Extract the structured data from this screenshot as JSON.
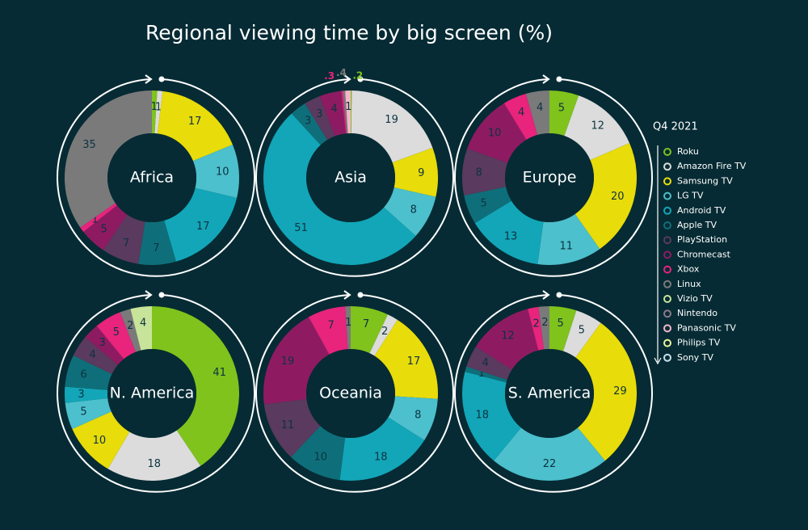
{
  "title": "Regional viewing time by big screen (%)",
  "legend": {
    "title": "Q4 2021",
    "items": [
      "Roku",
      "Amazon Fire TV",
      "Samsung TV",
      "LG TV",
      "Android TV",
      "Apple TV",
      "PlayStation",
      "Chromecast",
      "Xbox",
      "Linux",
      "Vizio TV",
      "Nintendo",
      "Panasonic TV",
      "Philips TV",
      "Sony TV"
    ],
    "colors": [
      "#7fc31c",
      "#dcdcdc",
      "#e8dc0a",
      "#4cc0cc",
      "#12a6b8",
      "#0e6f7a",
      "#5a3a5e",
      "#8e1b62",
      "#e8247c",
      "#7a7a7a",
      "#c8e49a",
      "#8c7a8c",
      "#f4b6c8",
      "#eef59a",
      "#c8e0ec"
    ]
  },
  "chart_data": [
    {
      "type": "donut",
      "title": "Africa",
      "values": [
        1,
        1,
        17,
        10,
        17,
        7,
        7,
        5,
        1,
        35,
        null,
        null,
        null,
        null,
        null
      ]
    },
    {
      "type": "donut",
      "title": "Asia",
      "values": [
        0.2,
        19,
        9,
        8,
        51,
        3,
        3,
        4,
        0.3,
        0.4,
        null,
        null,
        1,
        null,
        null
      ],
      "value_labels": [
        ".2",
        "19",
        "9",
        "8",
        "51",
        "3",
        "3",
        "4",
        ".3",
        ".4",
        null,
        null,
        "1",
        null,
        null
      ]
    },
    {
      "type": "donut",
      "title": "Europe",
      "values": [
        5,
        12,
        20,
        11,
        13,
        5,
        8,
        10,
        4,
        4,
        null,
        null,
        null,
        null,
        null
      ]
    },
    {
      "type": "donut",
      "title": "N. America",
      "values": [
        41,
        18,
        10,
        5,
        3,
        6,
        4,
        3,
        5,
        2,
        4,
        null,
        null,
        null,
        null
      ]
    },
    {
      "type": "donut",
      "title": "Oceania",
      "values": [
        7,
        2,
        17,
        8,
        18,
        10,
        11,
        19,
        7,
        1,
        null,
        null,
        null,
        null,
        null
      ]
    },
    {
      "type": "donut",
      "title": "S. America",
      "values": [
        5,
        5,
        29,
        22,
        18,
        1,
        4,
        12,
        2,
        2,
        null,
        null,
        null,
        null,
        null
      ]
    }
  ]
}
